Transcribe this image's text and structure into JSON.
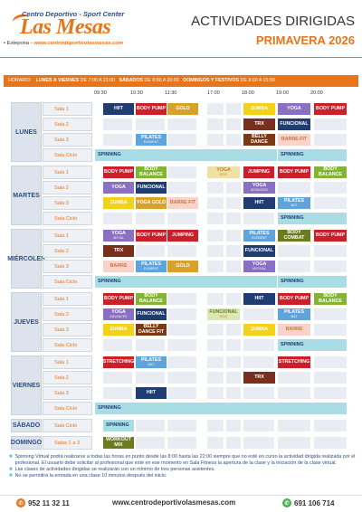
{
  "header": {
    "logo_top": "Centro Deportivo - Sport Center",
    "logo_main": "Las Mesas",
    "logo_city": "• Estepona -",
    "logo_url": "www.centrodeportivolasmesas.com",
    "title": "ACTIVIDADES DIRIGIDAS",
    "season": "PRIMAVERA 2026"
  },
  "hours": {
    "label": "HORARIO",
    "weekdays": "LUNES A VIERNES",
    "weekdays_de": "DE 7:00 A 23:00",
    "saturday": "SÁBADOS",
    "saturday_de": "DE 8:00 A 20:00",
    "sunday": "DOMINGOS Y FESTIVOS",
    "sunday_de": "DE 8:00 A 15:00"
  },
  "times": [
    "09:30",
    "10:30",
    "11:30",
    "17:00",
    "18:00",
    "19:00",
    "20:00"
  ],
  "days": [
    {
      "name": "LUNES",
      "rooms": [
        {
          "room": "Sala 1",
          "acts": [
            {
              "col": 0,
              "w": 1,
              "t": "HIIT",
              "c": "navy"
            },
            {
              "col": 1,
              "w": 1,
              "t": "BODY PUMP",
              "c": "red"
            },
            {
              "col": 2,
              "w": 1,
              "t": "GOLD",
              "c": "gold"
            },
            {
              "col": 6,
              "w": 1,
              "t": "ZUMBA",
              "c": "yellow"
            },
            {
              "col": 7,
              "w": 1,
              "t": "YOGA",
              "c": "purple"
            },
            {
              "col": 8,
              "w": 1,
              "t": "BODY PUMP",
              "c": "red"
            }
          ]
        },
        {
          "room": "Sala 2",
          "acts": [
            {
              "col": 6,
              "w": 1,
              "t": "TRX",
              "c": "maroon"
            },
            {
              "col": 7,
              "w": 1,
              "t": "FUNCIONAL",
              "c": "navy"
            }
          ]
        },
        {
          "room": "Sala 3",
          "acts": [
            {
              "col": 1,
              "w": 1,
              "t": "PILATES",
              "s": "ELEMENT",
              "c": "blue"
            },
            {
              "col": 6,
              "w": 1,
              "t": "BELLY DANCE",
              "c": "brown"
            },
            {
              "col": 7,
              "w": 1,
              "t": "BARRE FIT",
              "c": "lpink"
            }
          ]
        },
        {
          "room": "Sala Ciclo",
          "acts": [
            {
              "col": -1,
              "w": 2,
              "t": "SPINNING",
              "c": "teal",
              "spin": true
            },
            {
              "col": 7,
              "w": 2,
              "t": "SPINNING",
              "c": "teal",
              "spin": true
            }
          ]
        }
      ]
    },
    {
      "name": "MARTES",
      "rooms": [
        {
          "room": "Sala 1",
          "acts": [
            {
              "col": 0,
              "w": 1,
              "t": "BODY PUMP",
              "c": "red"
            },
            {
              "col": 1,
              "w": 1,
              "t": "BODY BALANCE",
              "c": "green"
            },
            {
              "col": 4,
              "w": 1,
              "t": "YOGA",
              "s": "KIDS",
              "c": "lgold"
            },
            {
              "col": 5,
              "w": 1,
              "t": "JUMPING",
              "c": "red"
            },
            {
              "col": 7,
              "w": 1,
              "t": "BODY PUMP",
              "c": "red"
            },
            {
              "col": 8,
              "w": 1,
              "t": "BODY BALANCE",
              "c": "green"
            }
          ]
        },
        {
          "room": "Sala 2",
          "acts": [
            {
              "col": 0,
              "w": 1,
              "t": "YOGA",
              "c": "purple"
            },
            {
              "col": 1,
              "w": 1,
              "t": "FUNCIONAL",
              "c": "navy"
            },
            {
              "col": 6,
              "w": 1,
              "t": "YOGA",
              "s": "ADVANCED",
              "c": "purple"
            }
          ]
        },
        {
          "room": "Sala 3",
          "acts": [
            {
              "col": 0,
              "w": 1,
              "t": "ZUMBA",
              "c": "yellow"
            },
            {
              "col": 1,
              "w": 1,
              "t": "YOGA GOLD",
              "c": "gold"
            },
            {
              "col": 2,
              "w": 1,
              "t": "BARRE FIT",
              "c": "lpink"
            },
            {
              "col": 6,
              "w": 1,
              "t": "HIIT",
              "c": "navy"
            },
            {
              "col": 7,
              "w": 1,
              "t": "PILATES",
              "s": "MAT",
              "c": "blue"
            }
          ]
        },
        {
          "room": "Sala Ciclo",
          "acts": [
            {
              "col": 7,
              "w": 2,
              "t": "SPINNING",
              "c": "teal",
              "spin": true
            }
          ]
        }
      ]
    },
    {
      "name": "MIÉRCOLES",
      "rooms": [
        {
          "room": "Sala 1",
          "acts": [
            {
              "col": 0,
              "w": 1,
              "t": "YOGA",
              "s": "INITIAL",
              "c": "purple"
            },
            {
              "col": 1,
              "w": 1,
              "t": "BODY PUMP",
              "c": "red"
            },
            {
              "col": 2,
              "w": 1,
              "t": "JUMPING",
              "c": "red"
            },
            {
              "col": 6,
              "w": 1,
              "t": "PILATES",
              "s": "ELEMENT",
              "c": "blue"
            },
            {
              "col": 7,
              "w": 1,
              "t": "BODY COMBAT",
              "c": "olive"
            },
            {
              "col": 8,
              "w": 1,
              "t": "BODY PUMP",
              "c": "red"
            }
          ]
        },
        {
          "room": "Sala 2",
          "acts": [
            {
              "col": 0,
              "w": 1,
              "t": "TRX",
              "c": "maroon"
            },
            {
              "col": 6,
              "w": 1,
              "t": "FUNCIONAL",
              "c": "navy"
            }
          ]
        },
        {
          "room": "Sala 3",
          "acts": [
            {
              "col": 0,
              "w": 1,
              "t": "BARRE",
              "c": "lpink"
            },
            {
              "col": 1,
              "w": 1,
              "t": "PILATES",
              "s": "ELEMENT",
              "c": "blue"
            },
            {
              "col": 2,
              "w": 1,
              "t": "GOLD",
              "c": "gold"
            },
            {
              "col": 6,
              "w": 1,
              "t": "YOGA",
              "s": "VIRTUAL",
              "c": "purple"
            }
          ]
        },
        {
          "room": "Sala Ciclo",
          "acts": [
            {
              "col": -1,
              "w": 2,
              "t": "SPINNING",
              "c": "teal",
              "spin": true
            },
            {
              "col": 7,
              "w": 2,
              "t": "SPINNING",
              "c": "teal",
              "spin": true
            }
          ]
        }
      ]
    },
    {
      "name": "JUEVES",
      "rooms": [
        {
          "room": "Sala 1",
          "acts": [
            {
              "col": 0,
              "w": 1,
              "t": "BODY PUMP",
              "c": "red"
            },
            {
              "col": 1,
              "w": 1,
              "t": "BODY BALANCE",
              "c": "green"
            },
            {
              "col": 6,
              "w": 1,
              "t": "HIIT",
              "c": "navy"
            },
            {
              "col": 7,
              "w": 1,
              "t": "BODY PUMP",
              "c": "red"
            },
            {
              "col": 8,
              "w": 1,
              "t": "BODY BALANCE",
              "c": "green"
            }
          ]
        },
        {
          "room": "Sala 2",
          "acts": [
            {
              "col": 0,
              "w": 1,
              "t": "YOGA",
              "s": "ADVANCED",
              "c": "purple"
            },
            {
              "col": 1,
              "w": 1,
              "t": "FUNCIONAL",
              "c": "navy"
            },
            {
              "col": 4,
              "w": 1,
              "t": "FUNCIONAL",
              "s": "KIDS",
              "c": "lgreen"
            },
            {
              "col": 7,
              "w": 1,
              "t": "PILATES",
              "s": "MAT",
              "c": "blue"
            }
          ]
        },
        {
          "room": "Sala 3",
          "acts": [
            {
              "col": 0,
              "w": 1,
              "t": "ZUMBA",
              "c": "yellow"
            },
            {
              "col": 1,
              "w": 1,
              "t": "BELLY DANCE FIT",
              "c": "brown"
            },
            {
              "col": 6,
              "w": 1,
              "t": "ZUMBA",
              "c": "yellow"
            },
            {
              "col": 7,
              "w": 1,
              "t": "BARRE",
              "c": "lpink"
            }
          ]
        },
        {
          "room": "Sala Ciclo",
          "acts": [
            {
              "col": 7,
              "w": 2,
              "t": "SPINNING",
              "c": "teal",
              "spin": true
            }
          ]
        }
      ]
    },
    {
      "name": "VIERNES",
      "rooms": [
        {
          "room": "Sala 1",
          "acts": [
            {
              "col": 0,
              "w": 1,
              "t": "STRETCHING",
              "c": "red"
            },
            {
              "col": 1,
              "w": 1,
              "t": "PILATES",
              "s": "MAT",
              "c": "blue"
            },
            {
              "col": 7,
              "w": 1,
              "t": "STRETCHING",
              "c": "red"
            }
          ]
        },
        {
          "room": "Sala 2",
          "acts": [
            {
              "col": 6,
              "w": 1,
              "t": "TRX",
              "c": "maroon"
            }
          ]
        },
        {
          "room": "Sala 3",
          "acts": [
            {
              "col": 1,
              "w": 1,
              "t": "HIIT",
              "c": "navy"
            }
          ]
        },
        {
          "room": "Sala Ciclo",
          "acts": [
            {
              "col": -1,
              "w": 2,
              "t": "SPINNING",
              "c": "teal",
              "spin": true
            }
          ]
        }
      ]
    },
    {
      "name": "SÁBADO",
      "rooms": [
        {
          "room": "Sala Ciclo",
          "acts": [
            {
              "col": 0,
              "w": 1,
              "t": "SPINNING",
              "c": "teal",
              "spin": true
            }
          ]
        }
      ]
    },
    {
      "name": "DOMINGO",
      "rooms": [
        {
          "room": "Salas 1 a 3",
          "acts": [
            {
              "col": 0,
              "w": 1,
              "t": "WORKOUT MIX",
              "c": "olive"
            }
          ]
        }
      ]
    }
  ],
  "notes": [
    "Spinning Virtual podrá realizarse a todas las horas en punto desde las 8:00 hasta las 22:00 siempre que no esté en curso la actividad dirigida realizada por el profesional. El usuario debe solicitar al profesional que esté en ese momento en Sala Fitness la apertura de la clase y la iniciación de la clase virtual.",
    "Las clases de actividades dirigidas se realizarán con un mínimo de tres personas asistentes.",
    "No se permitirá la entrada en una clase 10 minutos después del inicio."
  ],
  "footer": {
    "phone1": "952 11 32 11",
    "website": "www.centrodeportivolasmesas.com",
    "phone2": "691 106 714"
  }
}
